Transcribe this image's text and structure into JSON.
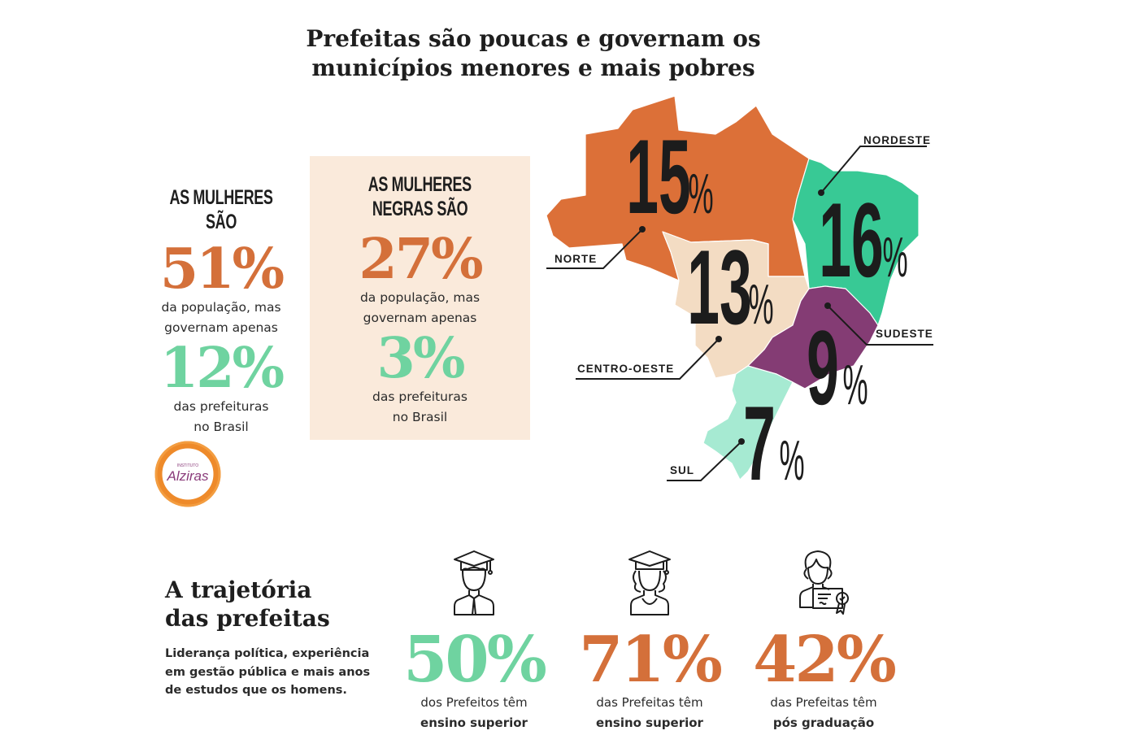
{
  "title": {
    "line1": "Prefeitas são poucas e governam os",
    "line2": "municípios menores e mais pobres"
  },
  "colors": {
    "orange": "#d4703a",
    "green": "#6fd3a0",
    "box_bg": "#faeadb",
    "norte": "#dc7038",
    "nordeste": "#38c995",
    "centro_oeste": "#f3dcc3",
    "sudeste": "#843c74",
    "sul": "#a6ead2"
  },
  "women": {
    "heading": "AS MULHERES SÃO",
    "population_pct": "51%",
    "caption1_line1": "da população, mas",
    "caption1_line2": "governam apenas",
    "mayors_pct": "12%",
    "caption2_line1": "das prefeituras",
    "caption2_line2": "no Brasil"
  },
  "black_women": {
    "heading_line1": "AS MULHERES",
    "heading_line2": "NEGRAS SÃO",
    "population_pct": "27%",
    "caption1_line1": "da população, mas",
    "caption1_line2": "governam apenas",
    "mayors_pct": "3%",
    "caption2_line1": "das prefeituras",
    "caption2_line2": "no Brasil"
  },
  "logo": {
    "text": "Alziras",
    "small_text": "INSTITUTO"
  },
  "map": {
    "regions": [
      {
        "name": "NORTE",
        "value": "15",
        "unit": "%"
      },
      {
        "name": "NORDESTE",
        "value": "16",
        "unit": "%"
      },
      {
        "name": "CENTRO-OESTE",
        "value": "13",
        "unit": "%"
      },
      {
        "name": "SUDESTE",
        "value": "9",
        "unit": "%"
      },
      {
        "name": "SUL",
        "value": "7",
        "unit": "%"
      }
    ]
  },
  "trajectory": {
    "title_line1": "A trajetória",
    "title_line2": "das prefeitas",
    "desc_line1": "Liderança política, experiência",
    "desc_line2": "em gestão pública e mais anos",
    "desc_line3": "de estudos que os homens.",
    "stats": [
      {
        "icon": "male-graduate-icon",
        "value": "50%",
        "line1": "dos Prefeitos têm",
        "line2": "ensino superior",
        "color": "#6fd3a0"
      },
      {
        "icon": "female-graduate-icon",
        "value": "71%",
        "line1": "das Prefeitas têm",
        "line2": "ensino superior",
        "color": "#d4703a"
      },
      {
        "icon": "woman-certificate-icon",
        "value": "42%",
        "line1": "das Prefeitas têm",
        "line2": "pós graduação",
        "color": "#d4703a"
      }
    ]
  }
}
